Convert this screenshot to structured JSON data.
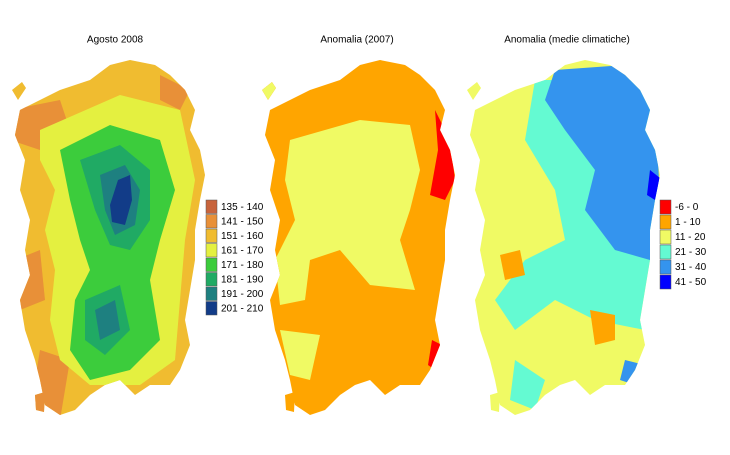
{
  "maps": [
    {
      "title": "Agosto 2008",
      "legend": [
        {
          "label": "135 - 140",
          "color": "#c8643c"
        },
        {
          "label": "141 - 150",
          "color": "#e89038"
        },
        {
          "label": "151 - 160",
          "color": "#f0bc30"
        },
        {
          "label": "161 - 170",
          "color": "#e4f040"
        },
        {
          "label": "171 - 180",
          "color": "#3ccc3c"
        },
        {
          "label": "181 - 190",
          "color": "#20aa64"
        },
        {
          "label": "191 - 200",
          "color": "#1e8080"
        },
        {
          "label": "201 - 210",
          "color": "#123c88"
        }
      ]
    },
    {
      "title": "Anomalia (2007)"
    },
    {
      "title": "Anomalia (medie climatiche)",
      "legend": [
        {
          "label": "-6 - 0",
          "color": "#ff0000"
        },
        {
          "label": "1 - 10",
          "color": "#ffa500"
        },
        {
          "label": "11 - 20",
          "color": "#f0fa64"
        },
        {
          "label": "21 - 30",
          "color": "#64fad2"
        },
        {
          "label": "31 - 40",
          "color": "#3494ee"
        },
        {
          "label": "41 - 50",
          "color": "#0000ff"
        }
      ]
    }
  ]
}
